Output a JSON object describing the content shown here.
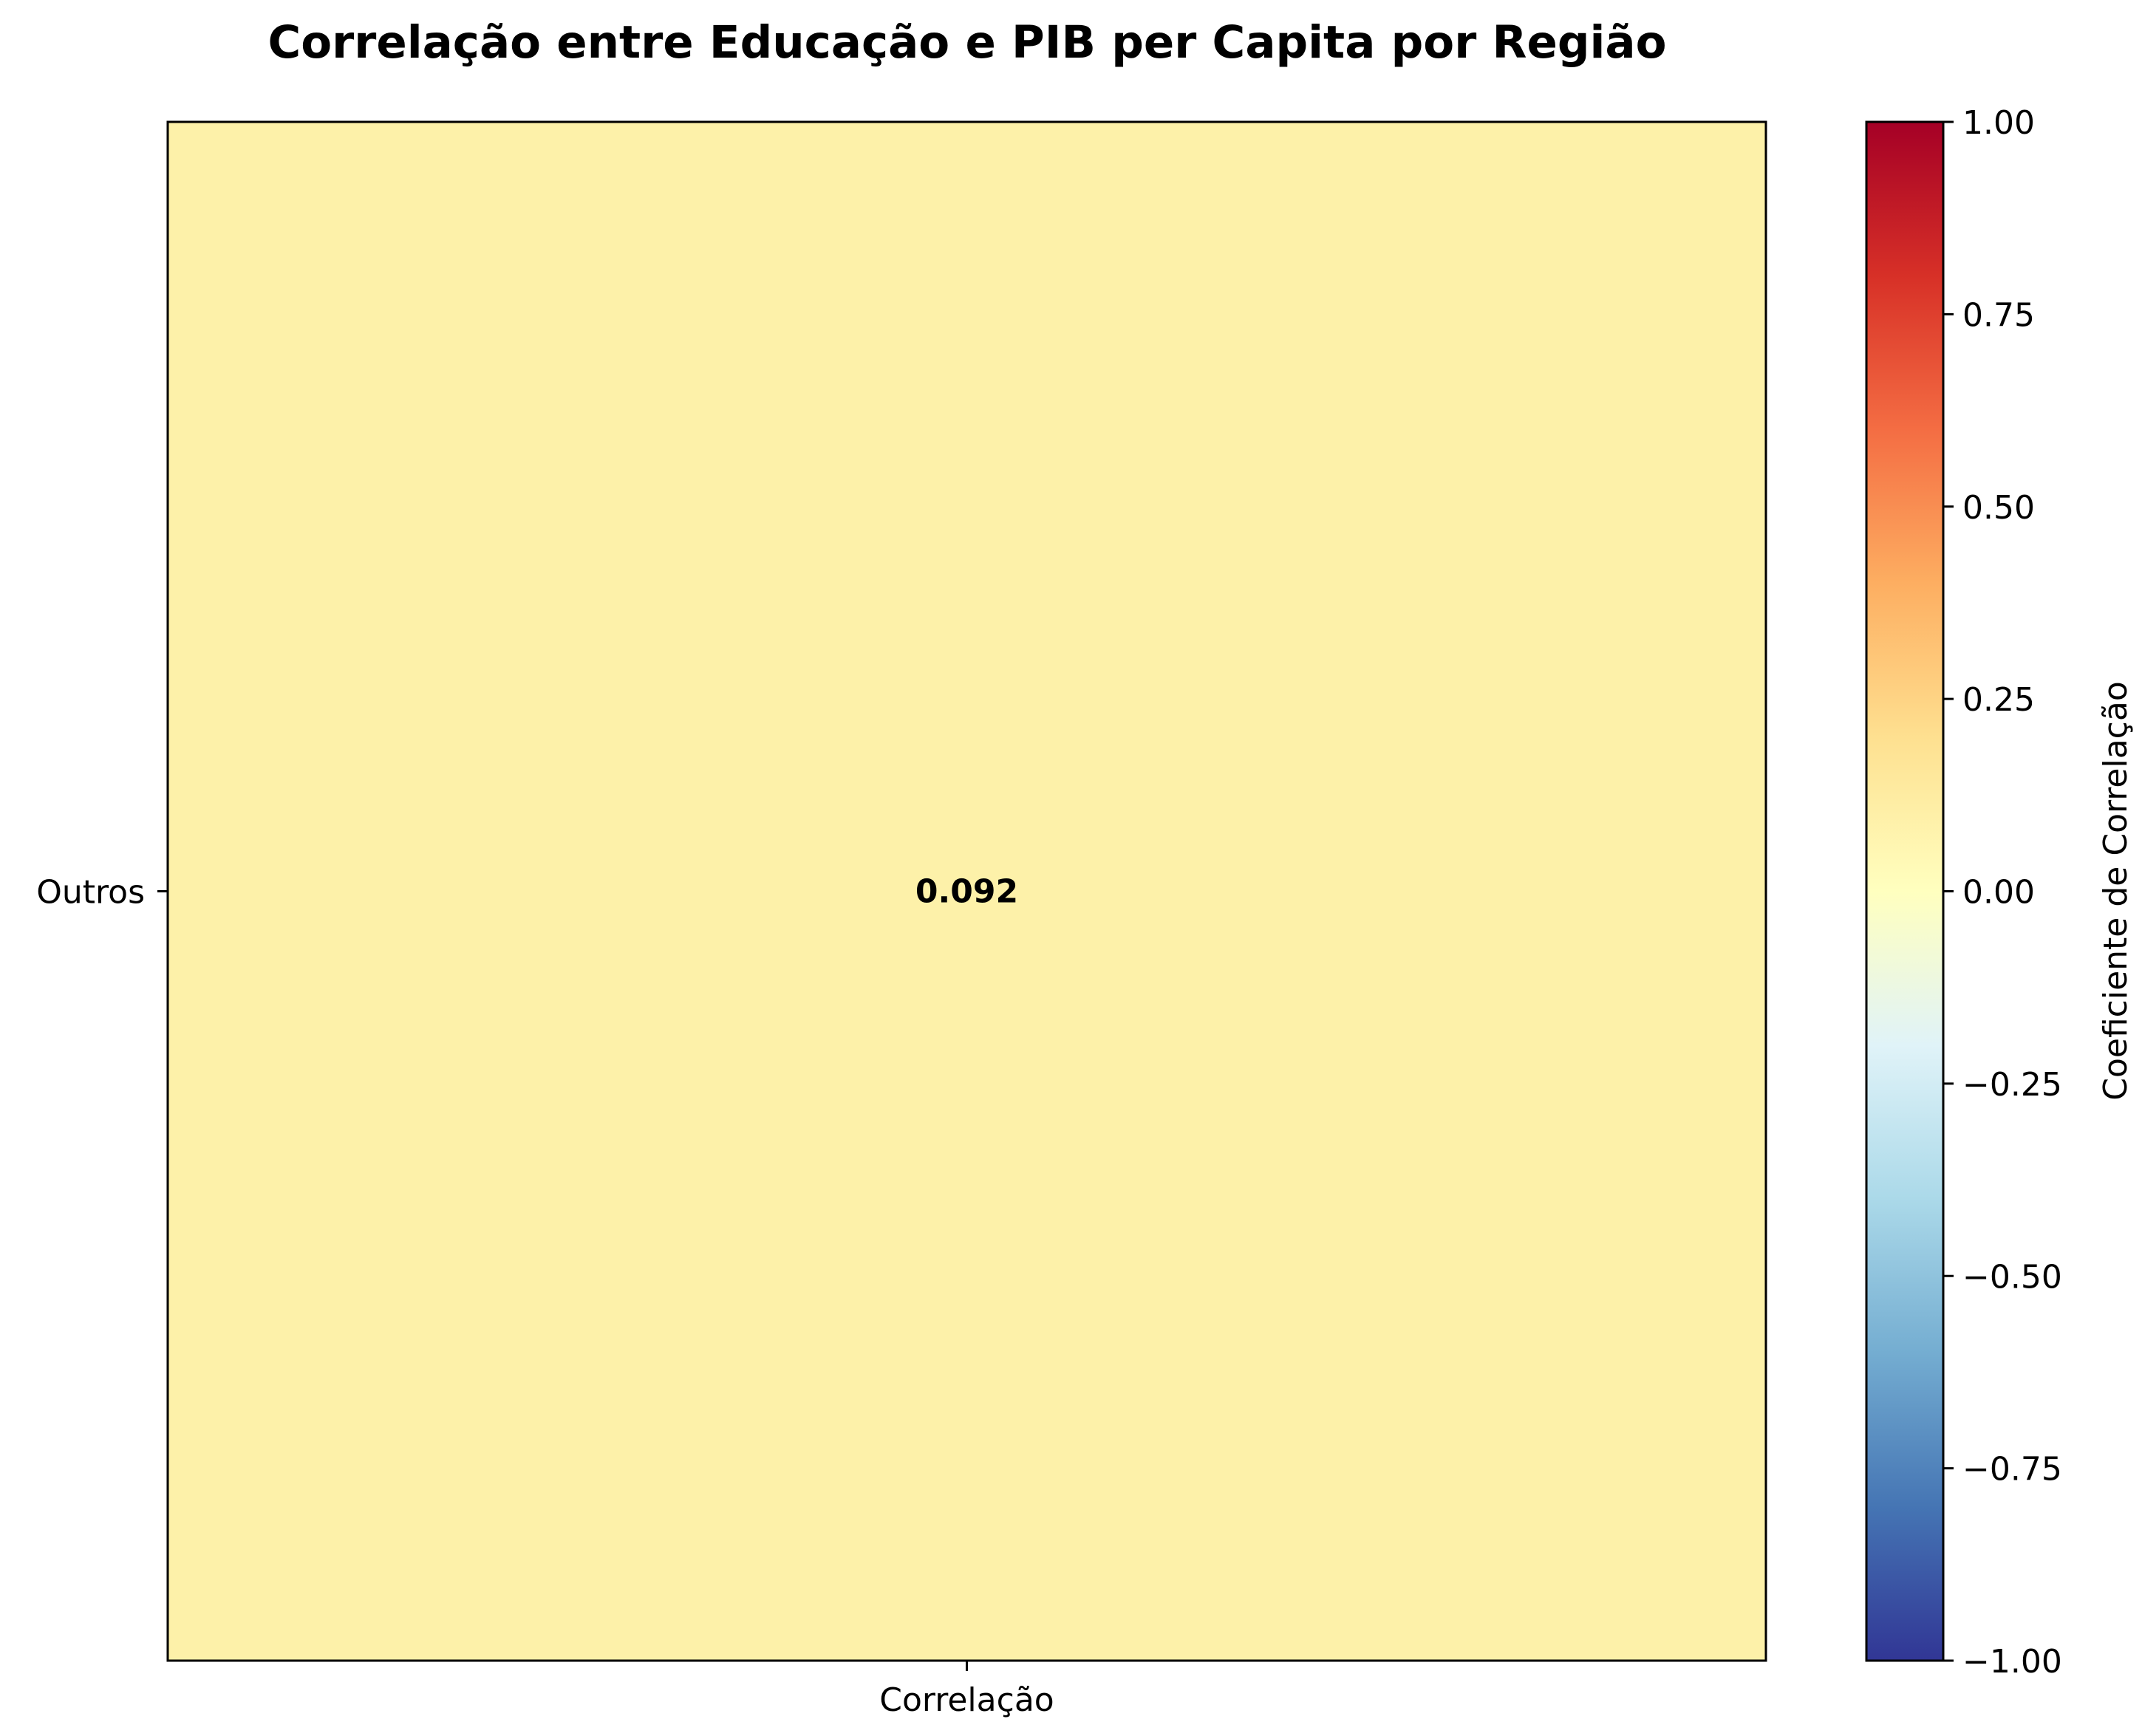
{
  "chart_data": {
    "type": "heatmap",
    "title": "Correlação entre Educação e PIB per Capita por Região",
    "x_categories": [
      "Correlação"
    ],
    "y_categories": [
      "Outros"
    ],
    "values": [
      [
        0.092
      ]
    ],
    "cell_labels": [
      [
        "0.092"
      ]
    ],
    "colormap": "RdYlBu_r",
    "colorbar": {
      "label": "Coeficiente de Correlação",
      "range": [
        -1.0,
        1.0
      ],
      "ticks": [
        1.0,
        0.75,
        0.5,
        0.25,
        0.0,
        -0.25,
        -0.5,
        -0.75,
        -1.0
      ],
      "tick_labels": [
        "1.00",
        "0.75",
        "0.50",
        "0.25",
        "0.00",
        "−0.25",
        "−0.50",
        "−0.75",
        "−1.00"
      ],
      "position": "right"
    },
    "grid": false
  },
  "colors": {
    "cell": "#fdf1a9",
    "colormap_stops": [
      "#313695",
      "#4575b4",
      "#74add1",
      "#abd9e9",
      "#e0f3f8",
      "#ffffbf",
      "#fee090",
      "#fdae61",
      "#f46d43",
      "#d73027",
      "#a50026"
    ]
  }
}
